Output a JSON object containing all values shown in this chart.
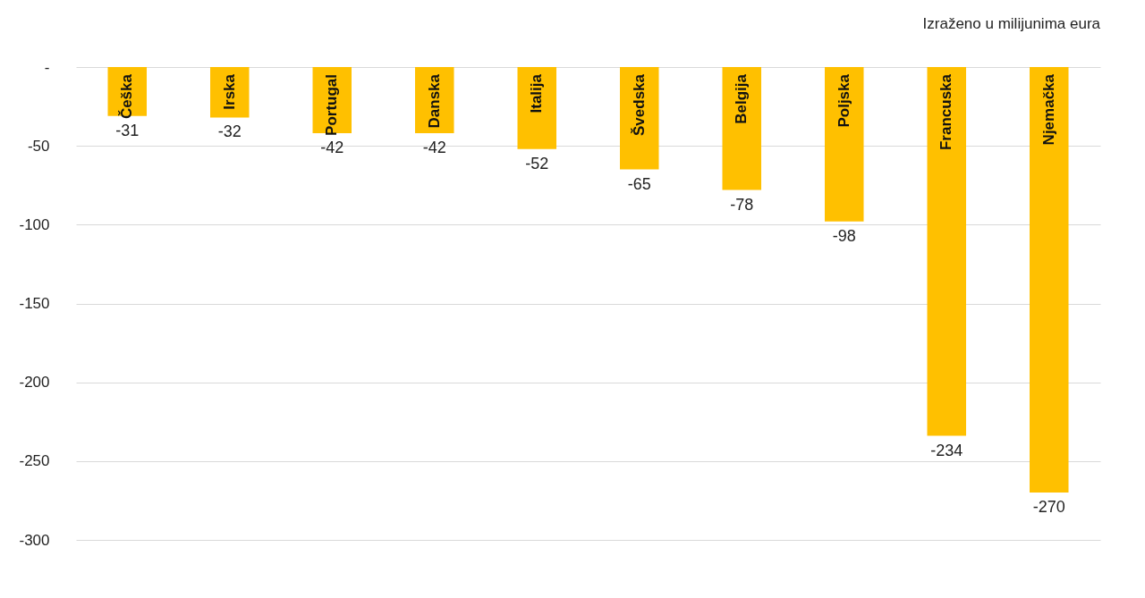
{
  "chart_data": {
    "type": "bar",
    "categories": [
      "Češka",
      "Irska",
      "Portugal",
      "Danska",
      "Italija",
      "Švedska",
      "Belgija",
      "Poljska",
      "Francuska",
      "Njemačka"
    ],
    "values": [
      -31,
      -32,
      -42,
      -42,
      -52,
      -65,
      -78,
      -98,
      -234,
      -270
    ],
    "color": "#ffc000",
    "ylim": [
      -300,
      0
    ],
    "yticks": [
      {
        "value": 0,
        "label": "-"
      },
      -50,
      -100,
      -150,
      -200,
      -250,
      -300
    ],
    "grid": "y",
    "data_labels": true,
    "annotations": [
      "Izraženo u milijunima eura"
    ]
  }
}
